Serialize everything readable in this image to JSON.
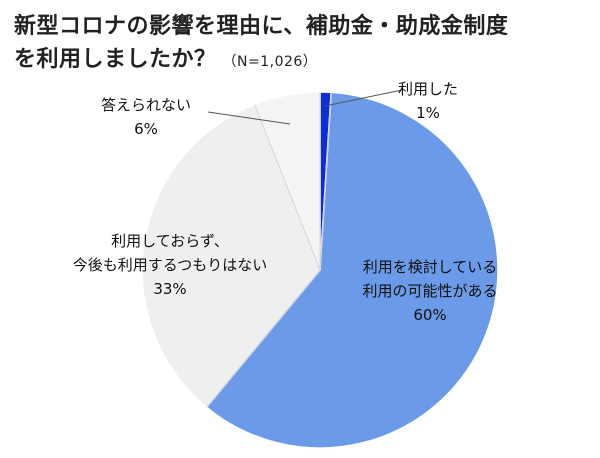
{
  "chart_data": {
    "type": "pie",
    "title_line1": "新型コロナの影響を理由に、補助金・助成金制度",
    "title_line2": "を利用しましたか？",
    "sample_size": "（N=1,026）",
    "slices": [
      {
        "lines": [
          "利用した"
        ],
        "percent_label": "1%",
        "value": 1,
        "color": "#0b2ed6"
      },
      {
        "lines": [
          "利用を検討している",
          "利用の可能性がある"
        ],
        "percent_label": "60%",
        "value": 60,
        "color": "#6b9be8"
      },
      {
        "lines": [
          "利用しておらず、",
          "今後も利用するつもりはない"
        ],
        "percent_label": "33%",
        "value": 33,
        "color": "#efefef"
      },
      {
        "lines": [
          "答えられない"
        ],
        "percent_label": "6%",
        "value": 6,
        "color": "#f4f4f4"
      }
    ],
    "stroke_color": "#cfcfcf",
    "leader_color": "#555555"
  }
}
